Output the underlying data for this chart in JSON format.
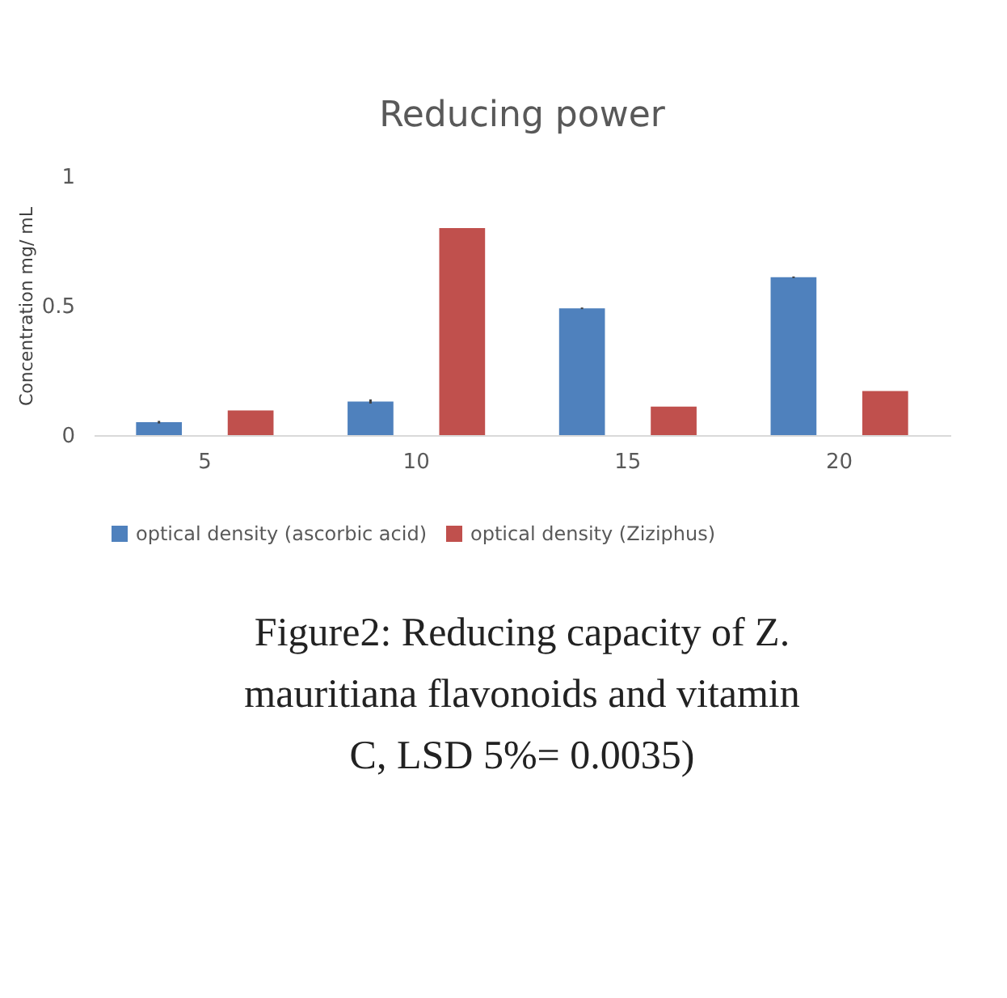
{
  "chart_data": {
    "type": "bar",
    "title": "Reducing power",
    "ylabel": "Concentration mg/ mL",
    "categories": [
      "5",
      "10",
      "15",
      "20"
    ],
    "series": [
      {
        "name": "optical density (ascorbic acid)",
        "color": "#4f81bd",
        "values": [
          0.05,
          0.13,
          0.49,
          0.61
        ],
        "errors": [
          0.005,
          0.008,
          0.003,
          0.003
        ]
      },
      {
        "name": "optical density (Ziziphus)",
        "color": "#c0504d",
        "values": [
          0.095,
          0.8,
          0.11,
          0.17
        ]
      }
    ],
    "ylim": [
      0,
      1
    ],
    "yticks": [
      0,
      0.5,
      1
    ],
    "grid": false,
    "legend": "bottom",
    "annotations": [
      "Figure2: Reducing capacity of Z. mauritiana flavonoids and vitamin C, LSD 5%= 0.0035)"
    ]
  }
}
